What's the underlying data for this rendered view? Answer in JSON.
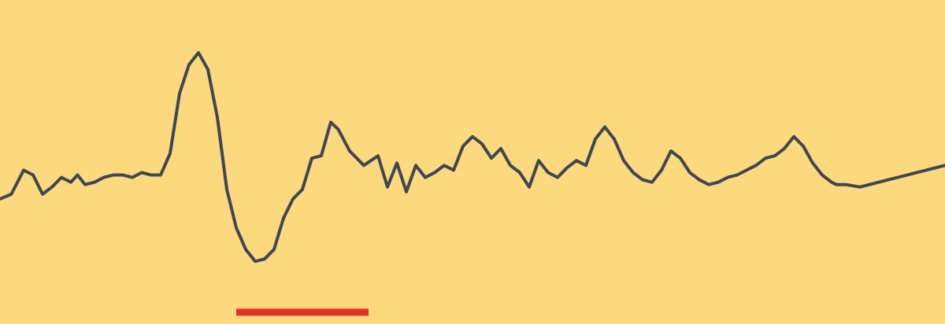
{
  "chart_data": {
    "type": "line",
    "title": "",
    "xlabel": "",
    "ylabel": "",
    "grid": false,
    "legend": "none",
    "xlim": [
      0,
      100
    ],
    "ylim": [
      -1.5,
      3.5
    ],
    "series": [
      {
        "x": [
          0,
          1.2,
          2.5,
          3.5,
          4.5,
          5.5,
          6.5,
          7.5,
          8.2,
          9,
          10,
          11,
          12,
          13,
          14,
          15,
          16,
          17,
          18,
          19,
          20,
          21,
          22,
          23,
          24,
          25,
          26,
          27,
          28,
          29,
          30,
          31,
          32,
          33,
          34,
          35,
          35.8,
          37,
          38.5,
          40,
          41,
          42,
          43,
          44,
          45,
          46,
          47,
          48,
          49,
          50,
          51,
          52,
          53,
          54,
          55,
          56,
          57,
          58,
          59,
          60,
          61,
          62,
          63,
          64,
          65,
          66,
          67,
          68,
          69,
          70,
          71,
          72,
          73,
          74,
          75,
          76,
          77,
          78,
          79,
          80,
          81,
          82,
          83,
          84,
          85,
          86,
          87,
          88,
          88.5,
          89.5,
          91,
          92,
          93,
          94,
          95,
          96,
          97,
          98,
          99,
          100
        ],
        "values": [
          0.0,
          0.1,
          0.6,
          0.5,
          0.1,
          0.25,
          0.45,
          0.35,
          0.5,
          0.3,
          0.35,
          0.45,
          0.5,
          0.5,
          0.45,
          0.55,
          0.5,
          0.5,
          0.95,
          2.2,
          2.8,
          3.05,
          2.7,
          1.7,
          0.2,
          -0.6,
          -1.05,
          -1.3,
          -1.25,
          -1.05,
          -0.4,
          0.0,
          0.2,
          0.85,
          0.9,
          1.6,
          1.45,
          1.0,
          0.7,
          0.9,
          0.25,
          0.75,
          0.15,
          0.7,
          0.45,
          0.55,
          0.7,
          0.6,
          1.1,
          1.3,
          1.15,
          0.85,
          1.05,
          0.7,
          0.55,
          0.25,
          0.8,
          0.55,
          0.45,
          0.65,
          0.8,
          0.7,
          1.25,
          1.5,
          1.25,
          0.8,
          0.55,
          0.4,
          0.35,
          0.6,
          1.0,
          0.85,
          0.55,
          0.4,
          0.3,
          0.35,
          0.45,
          0.5,
          0.6,
          0.7,
          0.85,
          0.9,
          1.05,
          1.3,
          1.1,
          0.75,
          0.5,
          0.35,
          0.3,
          0.3,
          0.25,
          0.3,
          0.35,
          0.4,
          0.45,
          0.5,
          0.55,
          0.6,
          0.65,
          0.7
        ]
      }
    ],
    "annotations": [
      {
        "type": "bar-marker",
        "x_start": 25,
        "x_end": 39,
        "y": -2.0
      }
    ]
  },
  "colors": {
    "background": "#FCD97C",
    "line": "#3D4756",
    "marker": "#E1312A"
  }
}
